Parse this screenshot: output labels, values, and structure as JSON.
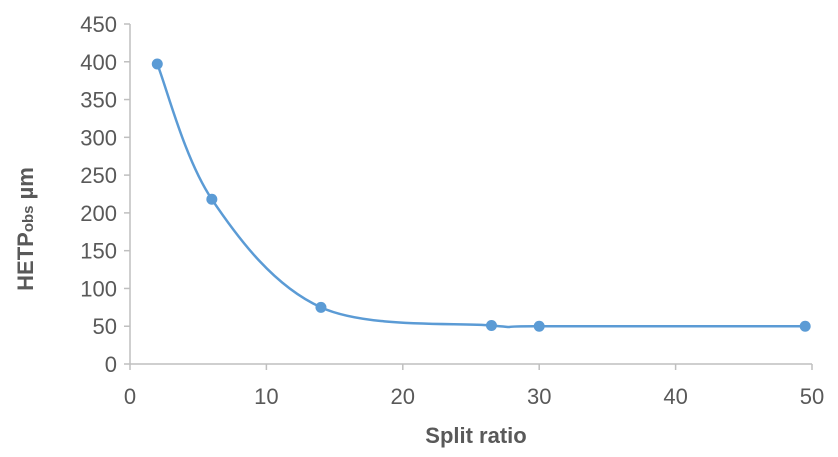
{
  "chart_data": {
    "type": "scatter",
    "title": "",
    "xlabel": "Split ratio",
    "ylabel": {
      "main": "HETP",
      "subscript": "obs",
      "unit": " µm"
    },
    "xlim": [
      0,
      50
    ],
    "ylim": [
      0,
      450
    ],
    "xticks": [
      "0",
      "10",
      "20",
      "30",
      "40",
      "50"
    ],
    "yticks": [
      "0",
      "50",
      "100",
      "150",
      "200",
      "250",
      "300",
      "350",
      "400",
      "450"
    ],
    "grid": false,
    "legend": "none",
    "series": [
      {
        "marker": "circle",
        "line": "smoothed",
        "color": "#5B9BD5",
        "points": [
          {
            "x": 2,
            "y": 397
          },
          {
            "x": 6,
            "y": 218
          },
          {
            "x": 14,
            "y": 75
          },
          {
            "x": 26.5,
            "y": 51
          },
          {
            "x": 30,
            "y": 50
          },
          {
            "x": 49.5,
            "y": 50
          }
        ]
      }
    ],
    "colors": {
      "series": "#5B9BD5",
      "axis": "#BFBFBF",
      "text": "#595959"
    }
  }
}
